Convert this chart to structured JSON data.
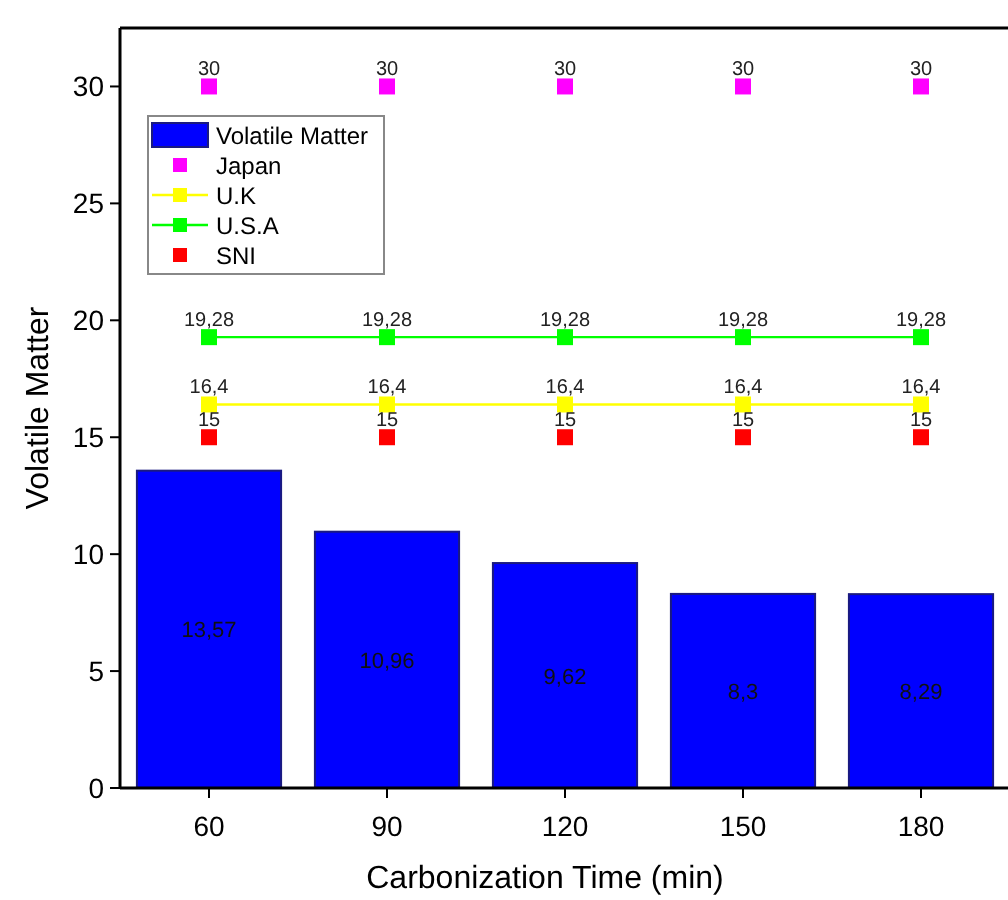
{
  "chart_data": {
    "type": "bar",
    "xlabel": "Carbonization Time (min)",
    "ylabel": "Volatile Matter",
    "categories": [
      "60",
      "90",
      "120",
      "150",
      "180"
    ],
    "series": [
      {
        "name": "Volatile Matter",
        "color": "#0000ff",
        "values": [
          13.57,
          10.96,
          9.62,
          8.3,
          8.29
        ],
        "value_labels": [
          "13,57",
          "10,96",
          "9,62",
          "8,3",
          "8,29"
        ]
      },
      {
        "name": "Japan",
        "type": "scatter",
        "color": "#ff00ff",
        "values": [
          30,
          30,
          30,
          30,
          30
        ],
        "value_labels": [
          "30",
          "30",
          "30",
          "30",
          "30"
        ]
      },
      {
        "name": "U.K",
        "type": "line",
        "color": "#ffff00",
        "values": [
          16.4,
          16.4,
          16.4,
          16.4,
          16.4
        ],
        "value_labels": [
          "16,4",
          "16,4",
          "16,4",
          "16,4",
          "16,4"
        ]
      },
      {
        "name": "U.S.A",
        "type": "line",
        "color": "#00ff00",
        "values": [
          19.28,
          19.28,
          19.28,
          19.28,
          19.28
        ],
        "value_labels": [
          "19,28",
          "19,28",
          "19,28",
          "19,28",
          "19,28"
        ]
      },
      {
        "name": "SNI",
        "type": "scatter",
        "color": "#ff0000",
        "values": [
          15,
          15,
          15,
          15,
          15
        ],
        "value_labels": [
          "15",
          "15",
          "15",
          "15",
          "15"
        ]
      }
    ],
    "ylim": [
      0,
      32.5
    ],
    "yticks": [
      0,
      5,
      10,
      15,
      20,
      25,
      30
    ],
    "marker": "square",
    "legend": "top left",
    "grid": false
  }
}
